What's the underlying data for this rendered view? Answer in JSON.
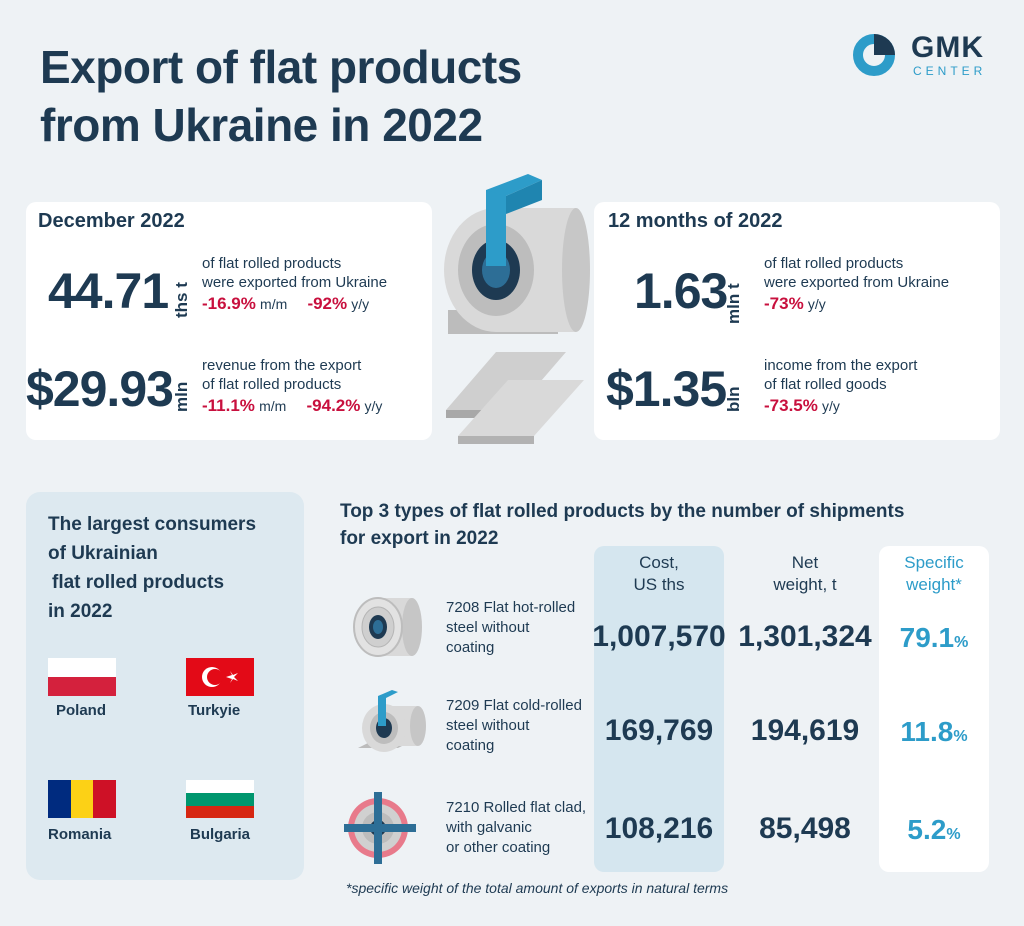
{
  "title": {
    "line1": "Export of flat products",
    "line2": "from Ukraine in 2022"
  },
  "logo": {
    "main": "GMK",
    "sub": "CENTER"
  },
  "december": {
    "heading": "December 2022",
    "volume": {
      "value": "44.71",
      "unit": "ths t",
      "desc_line1": "of flat rolled products",
      "desc_line2": "were exported from Ukraine",
      "mm": "-16.9%",
      "mm_label": "m/m",
      "yy": "-92%",
      "yy_label": "y/y"
    },
    "revenue": {
      "value": "$29.93",
      "unit": "mln",
      "desc_line1": "revenue from the export",
      "desc_line2": "of flat rolled products",
      "mm": "-11.1%",
      "mm_label": "m/m",
      "yy": "-94.2%",
      "yy_label": "y/y"
    }
  },
  "year": {
    "heading": "12 months of 2022",
    "volume": {
      "value": "1.63",
      "unit": "mln t",
      "desc_line1": "of flat rolled products",
      "desc_line2": "were exported from Ukraine",
      "yy": "-73%",
      "yy_label": "y/y"
    },
    "revenue": {
      "value": "$1.35",
      "unit": "bln",
      "desc_line1": "income from the export",
      "desc_line2": "of flat rolled goods",
      "yy": "-73.5%",
      "yy_label": "y/y"
    }
  },
  "consumers": {
    "title_line1": "The largest consumers",
    "title_line2": "of Ukrainian",
    "title_line3": "flat rolled products",
    "title_line4": "in 2022",
    "countries": [
      "Poland",
      "Turkyie",
      "Romania",
      "Bulgaria"
    ]
  },
  "table": {
    "heading_line1": "Top 3 types of flat rolled products by the number of shipments",
    "heading_line2": "for export in 2022",
    "col_cost_line1": "Cost,",
    "col_cost_line2": "US ths",
    "col_weight_line1": "Net",
    "col_weight_line2": "weight, t",
    "col_spec_line1": "Specific",
    "col_spec_line2": "weight*",
    "rows": [
      {
        "line1": "7208 Flat hot-rolled",
        "line2": "steel without",
        "line3": "coating",
        "cost": "1,007,570",
        "weight": "1,301,324",
        "spec": "79.1",
        "pct": "%"
      },
      {
        "line1": "7209 Flat cold-rolled",
        "line2": "steel without",
        "line3": "coating",
        "cost": "169,769",
        "weight": "194,619",
        "spec": "11.8",
        "pct": "%"
      },
      {
        "line1": "7210 Rolled flat clad,",
        "line2": "with galvanic",
        "line3": "or other coating",
        "cost": "108,216",
        "weight": "85,498",
        "spec": "5.2",
        "pct": "%"
      }
    ],
    "footnote": "*specific weight of the total amount of exports in natural terms"
  },
  "colors": {
    "navy": "#1e3a52",
    "accent": "#2d9cc9",
    "negative": "#c8103e"
  }
}
